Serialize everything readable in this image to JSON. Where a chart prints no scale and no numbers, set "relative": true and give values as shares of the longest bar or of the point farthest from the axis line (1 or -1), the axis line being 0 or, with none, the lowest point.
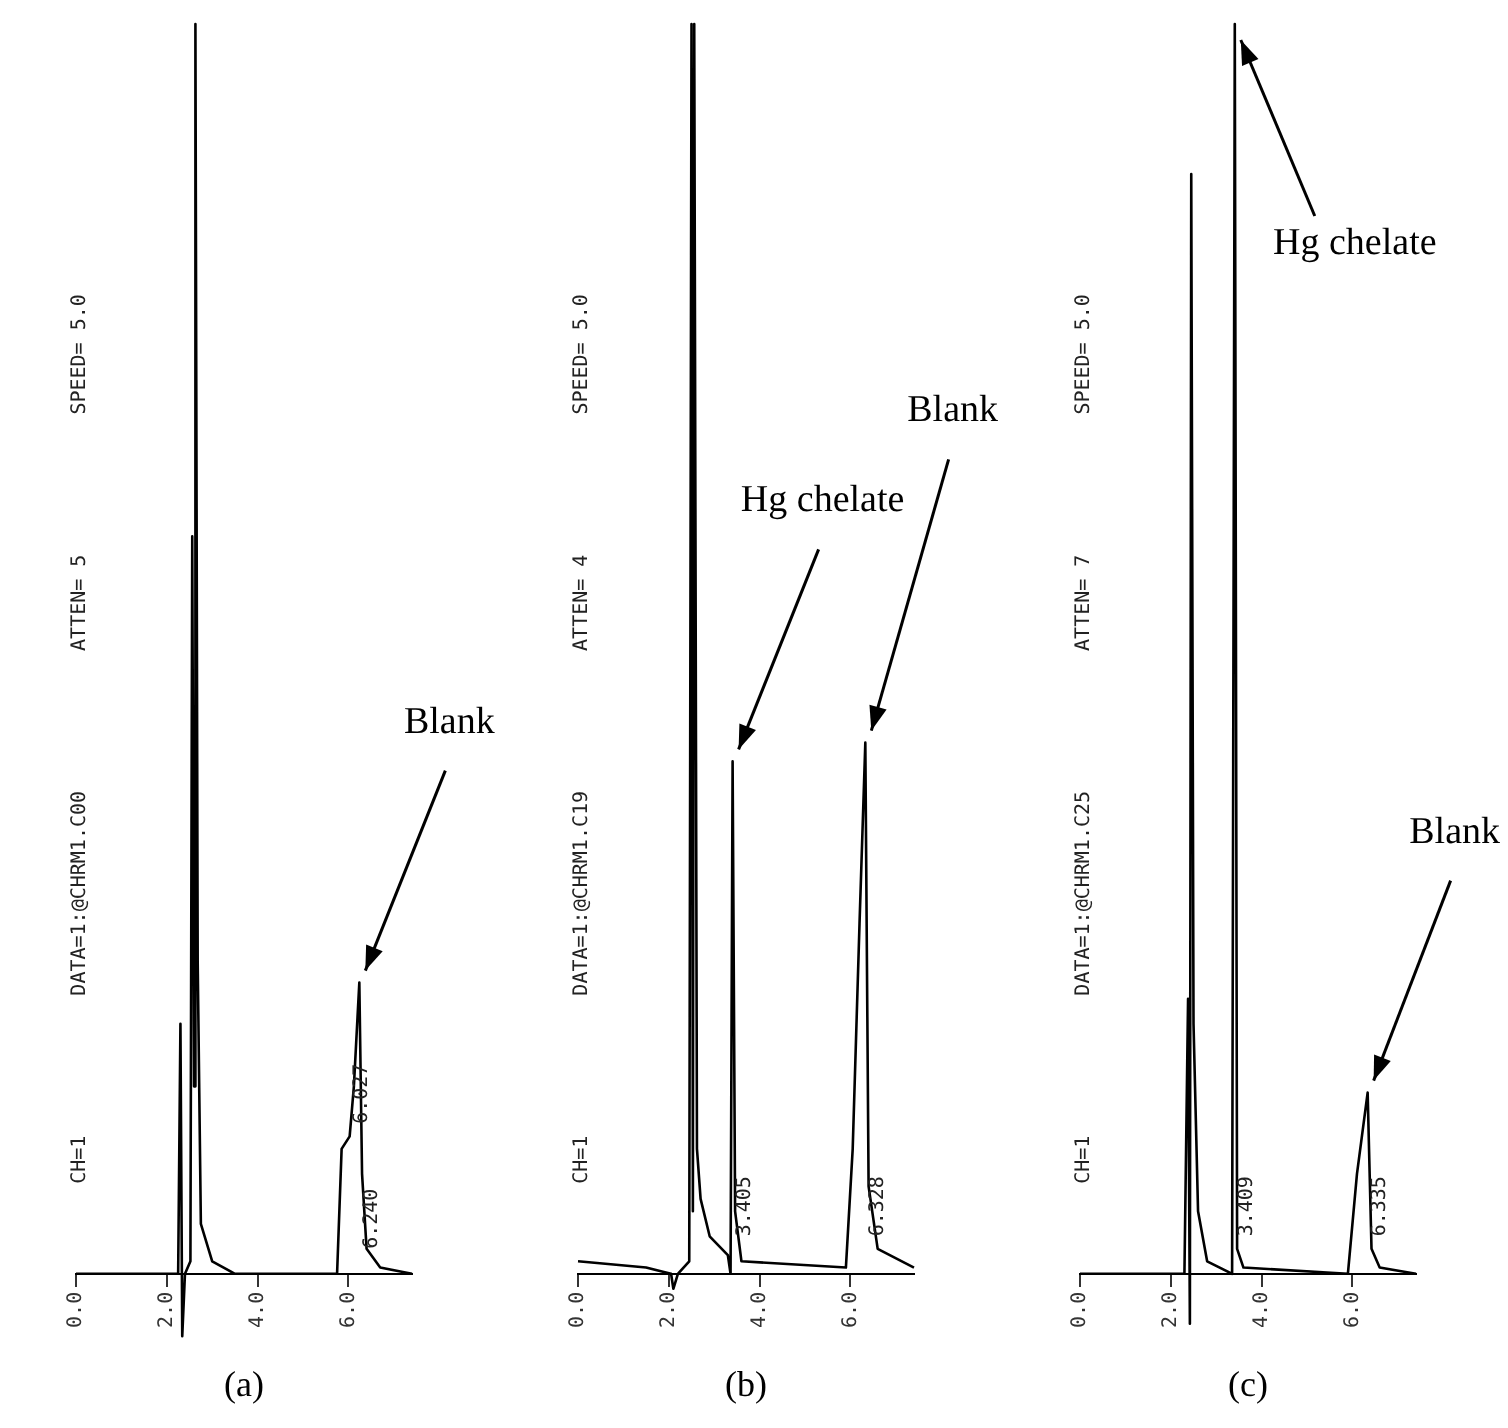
{
  "chart_data": [
    {
      "type": "line",
      "title": "(a)",
      "relative": true,
      "tick_labels": "x",
      "xlim": [
        0,
        7.4
      ],
      "xticks": [
        {
          "value": 0,
          "label": "0.0"
        },
        {
          "value": 2,
          "label": "2.0"
        },
        {
          "value": 4,
          "label": "4.0"
        },
        {
          "value": 6,
          "label": "6.0"
        }
      ],
      "x": [
        0,
        2.25,
        2.3,
        2.34,
        2.4,
        2.52,
        2.56,
        2.6,
        2.63,
        2.68,
        2.75,
        3.0,
        3.5,
        5.75,
        5.85,
        6.027,
        6.12,
        6.24,
        6.3,
        6.4,
        6.7,
        7.4
      ],
      "series": [
        {
          "color": "#000000",
          "values": [
            0,
            0,
            0.2,
            -0.05,
            0,
            0.01,
            0.59,
            0.15,
            1,
            0.25,
            0.04,
            0.01,
            0,
            0,
            0.1,
            0.11,
            0.15,
            0.233,
            0.08,
            0.02,
            0.005,
            0
          ]
        }
      ],
      "annotations": [
        "CH=1",
        "DATA=1:@CHRM1.C00",
        "ATTEN= 5",
        "SPEED= 5.0",
        {
          "text": "6.240",
          "x": 6.24,
          "y": 0.02
        },
        {
          "text": "6.027",
          "x": 6.027,
          "y": 0.12
        },
        {
          "text": "Blank",
          "x": 6.24,
          "y": 0.233
        }
      ]
    },
    {
      "type": "line",
      "title": "(b)",
      "relative": true,
      "tick_labels": "x",
      "xlim": [
        0,
        7.4
      ],
      "xticks": [
        {
          "value": 0,
          "label": "0.0"
        },
        {
          "value": 2,
          "label": "2.0"
        },
        {
          "value": 4,
          "label": "4.0"
        },
        {
          "value": 6,
          "label": "6.0"
        }
      ],
      "x": [
        0,
        1.5,
        2.05,
        2.1,
        2.2,
        2.45,
        2.5,
        2.53,
        2.56,
        2.62,
        2.7,
        2.9,
        3.3,
        3.36,
        3.405,
        3.46,
        3.6,
        5.9,
        6.05,
        6.2,
        6.328,
        6.4,
        6.6,
        7.4
      ],
      "series": [
        {
          "color": "#000000",
          "values": [
            0.01,
            0.005,
            0,
            -0.012,
            0,
            0.01,
            1,
            0.05,
            1,
            0.1,
            0.06,
            0.03,
            0.015,
            0,
            0.41,
            0.05,
            0.01,
            0.005,
            0.1,
            0.28,
            0.425,
            0.07,
            0.02,
            0.005
          ]
        }
      ],
      "annotations": [
        "CH=1",
        "DATA=1:@CHRM1.C19",
        "ATTEN= 4",
        "SPEED= 5.0",
        {
          "text": "3.405",
          "x": 3.405,
          "y": 0.03
        },
        {
          "text": "6.328",
          "x": 6.328,
          "y": 0.03
        },
        {
          "text": "Hg chelate",
          "x": 3.405,
          "y": 0.41
        },
        {
          "text": "Blank",
          "x": 6.328,
          "y": 0.425
        }
      ]
    },
    {
      "type": "line",
      "title": "(c)",
      "relative": true,
      "tick_labels": "x",
      "xlim": [
        0,
        7.4
      ],
      "xticks": [
        {
          "value": 0,
          "label": "0.0"
        },
        {
          "value": 2,
          "label": "2.0"
        },
        {
          "value": 4,
          "label": "4.0"
        },
        {
          "value": 6,
          "label": "6.0"
        }
      ],
      "x": [
        0,
        2.3,
        2.38,
        2.42,
        2.45,
        2.5,
        2.6,
        2.8,
        3.35,
        3.409,
        3.46,
        3.6,
        5.9,
        6.1,
        6.335,
        6.42,
        6.6,
        7.4
      ],
      "series": [
        {
          "color": "#000000",
          "values": [
            0,
            0,
            0.22,
            -0.04,
            0.88,
            0.2,
            0.05,
            0.01,
            0,
            1,
            0.02,
            0.005,
            0,
            0.08,
            0.145,
            0.02,
            0.005,
            0
          ]
        }
      ],
      "annotations": [
        "CH=1",
        "DATA=1:@CHRM1.C25",
        "ATTEN= 7",
        "SPEED= 5.0",
        {
          "text": "3.409",
          "x": 3.409,
          "y": 0.03
        },
        {
          "text": "6.335",
          "x": 6.335,
          "y": 0.03
        },
        {
          "text": "Hg chelate",
          "x": 3.409,
          "y": 1
        },
        {
          "text": "Blank",
          "x": 6.335,
          "y": 0.145
        }
      ]
    }
  ]
}
